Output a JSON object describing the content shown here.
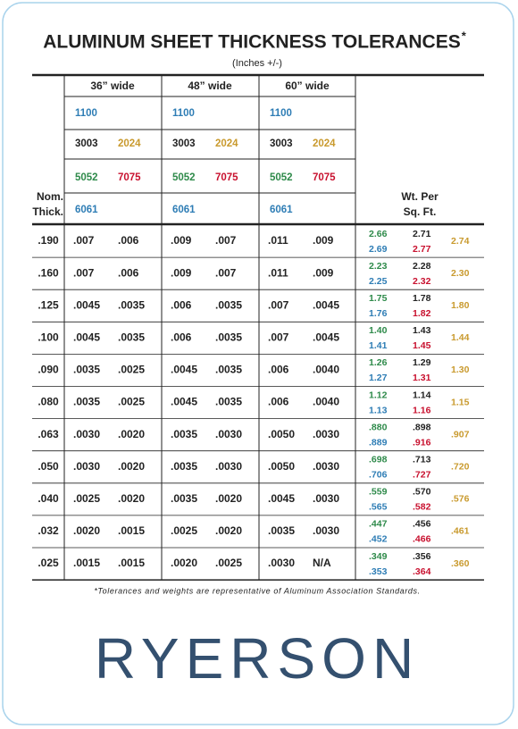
{
  "header": {
    "title": "ALUMINUM SHEET THICKNESS TOLERANCES",
    "title_mark": "*",
    "subtitle": "(Inches +/-)"
  },
  "table": {
    "thickness_header": [
      "Nom.",
      "Thick."
    ],
    "weight_header": [
      "Wt. Per",
      "Sq. Ft."
    ],
    "columns": [
      "36” wide",
      "48” wide",
      "60” wide"
    ],
    "alloy_rows": [
      [
        "1100"
      ],
      [
        "3003",
        "2024"
      ],
      [
        "5052",
        "7075"
      ],
      [
        "6061"
      ]
    ],
    "rows": [
      {
        "thickness": ".190",
        "tolerances": [
          ".007",
          ".006",
          ".009",
          ".007",
          ".011",
          ".009"
        ],
        "weights": [
          "2.66",
          "2.71",
          "2.69",
          "2.77",
          "2.74"
        ]
      },
      {
        "thickness": ".160",
        "tolerances": [
          ".007",
          ".006",
          ".009",
          ".007",
          ".011",
          ".009"
        ],
        "weights": [
          "2.23",
          "2.28",
          "2.25",
          "2.32",
          "2.30"
        ]
      },
      {
        "thickness": ".125",
        "tolerances": [
          ".0045",
          ".0035",
          ".006",
          ".0035",
          ".007",
          ".0045"
        ],
        "weights": [
          "1.75",
          "1.78",
          "1.76",
          "1.82",
          "1.80"
        ]
      },
      {
        "thickness": ".100",
        "tolerances": [
          ".0045",
          ".0035",
          ".006",
          ".0035",
          ".007",
          ".0045"
        ],
        "weights": [
          "1.40",
          "1.43",
          "1.41",
          "1.45",
          "1.44"
        ]
      },
      {
        "thickness": ".090",
        "tolerances": [
          ".0035",
          ".0025",
          ".0045",
          ".0035",
          ".006",
          ".0040"
        ],
        "weights": [
          "1.26",
          "1.29",
          "1.27",
          "1.31",
          "1.30"
        ]
      },
      {
        "thickness": ".080",
        "tolerances": [
          ".0035",
          ".0025",
          ".0045",
          ".0035",
          ".006",
          ".0040"
        ],
        "weights": [
          "1.12",
          "1.14",
          "1.13",
          "1.16",
          "1.15"
        ]
      },
      {
        "thickness": ".063",
        "tolerances": [
          ".0030",
          ".0020",
          ".0035",
          ".0030",
          ".0050",
          ".0030"
        ],
        "weights": [
          ".880",
          ".898",
          ".889",
          ".916",
          ".907"
        ]
      },
      {
        "thickness": ".050",
        "tolerances": [
          ".0030",
          ".0020",
          ".0035",
          ".0030",
          ".0050",
          ".0030"
        ],
        "weights": [
          ".698",
          ".713",
          ".706",
          ".727",
          ".720"
        ]
      },
      {
        "thickness": ".040",
        "tolerances": [
          ".0025",
          ".0020",
          ".0035",
          ".0020",
          ".0045",
          ".0030"
        ],
        "weights": [
          ".559",
          ".570",
          ".565",
          ".582",
          ".576"
        ]
      },
      {
        "thickness": ".032",
        "tolerances": [
          ".0020",
          ".0015",
          ".0025",
          ".0020",
          ".0035",
          ".0030"
        ],
        "weights": [
          ".447",
          ".456",
          ".452",
          ".466",
          ".461"
        ]
      },
      {
        "thickness": ".025",
        "tolerances": [
          ".0015",
          ".0015",
          ".0020",
          ".0025",
          ".0030",
          "N/A"
        ],
        "weights": [
          ".349",
          ".356",
          ".353",
          ".364",
          ".360"
        ]
      }
    ]
  },
  "footnote": "*Tolerances and weights are representative of Aluminum Association Standards.",
  "logo": "RYERSON"
}
